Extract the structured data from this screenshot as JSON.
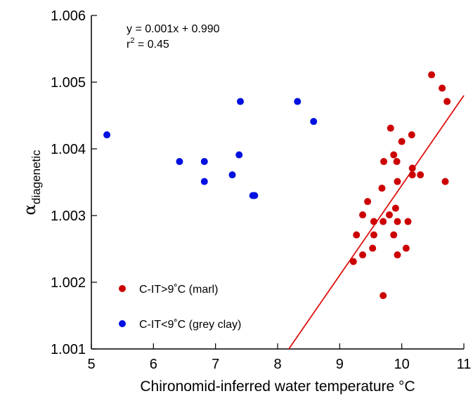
{
  "chart_data": {
    "type": "scatter",
    "xlabel": "Chironomid-inferred water temperature °C",
    "ylabel_main": "α",
    "ylabel_sub": "diagenetic",
    "xlim": [
      5,
      11
    ],
    "ylim": [
      1.001,
      1.006
    ],
    "xticks": [
      5,
      6,
      7,
      8,
      9,
      10,
      11
    ],
    "yticks": [
      1.001,
      1.002,
      1.003,
      1.004,
      1.005,
      1.006
    ],
    "xtick_labels": [
      "5",
      "6",
      "7",
      "8",
      "9",
      "10",
      "11"
    ],
    "ytick_labels": [
      "1.001",
      "1.002",
      "1.003",
      "1.004",
      "1.005",
      "1.006"
    ],
    "grid": false,
    "legend_position": "bottom-left",
    "annotation": {
      "equation": "y = 0.001x + 0.990",
      "r2_prefix": "r",
      "r2_sup": "2",
      "r2_value": " = 0.45"
    },
    "regression": {
      "x": [
        8.18,
        11.0
      ],
      "y": [
        1.001,
        1.0048
      ],
      "color": "#e01010"
    },
    "series": [
      {
        "name": "C-IT>9˚C (marl)",
        "color": "#cc0000",
        "points": [
          [
            9.22,
            1.00231
          ],
          [
            9.27,
            1.00271
          ],
          [
            9.37,
            1.00301
          ],
          [
            9.37,
            1.00241
          ],
          [
            9.45,
            1.00321
          ],
          [
            9.53,
            1.00251
          ],
          [
            9.55,
            1.00291
          ],
          [
            9.55,
            1.00271
          ],
          [
            9.68,
            1.00341
          ],
          [
            9.7,
            1.00291
          ],
          [
            9.71,
            1.00381
          ],
          [
            9.7,
            1.0018
          ],
          [
            9.8,
            1.00301
          ],
          [
            9.82,
            1.00431
          ],
          [
            9.87,
            1.00391
          ],
          [
            9.87,
            1.00271
          ],
          [
            9.9,
            1.00311
          ],
          [
            9.92,
            1.00381
          ],
          [
            9.93,
            1.00291
          ],
          [
            9.93,
            1.00351
          ],
          [
            9.93,
            1.00241
          ],
          [
            10.0,
            1.00411
          ],
          [
            10.07,
            1.00251
          ],
          [
            10.1,
            1.00291
          ],
          [
            10.16,
            1.00421
          ],
          [
            10.17,
            1.00371
          ],
          [
            10.17,
            1.00361
          ],
          [
            10.3,
            1.00361
          ],
          [
            10.48,
            1.00511
          ],
          [
            10.65,
            1.00491
          ],
          [
            10.7,
            1.00351
          ],
          [
            10.73,
            1.00471
          ]
        ]
      },
      {
        "name": "C-IT<9˚C (grey clay)",
        "color": "#0010e0",
        "points": [
          [
            5.25,
            1.00421
          ],
          [
            6.42,
            1.00381
          ],
          [
            6.82,
            1.00381
          ],
          [
            6.82,
            1.00351
          ],
          [
            7.27,
            1.00361
          ],
          [
            7.38,
            1.00391
          ],
          [
            7.4,
            1.00471
          ],
          [
            7.6,
            1.0033
          ],
          [
            7.63,
            1.0033
          ],
          [
            8.32,
            1.00471
          ],
          [
            8.58,
            1.00441
          ]
        ]
      }
    ]
  }
}
